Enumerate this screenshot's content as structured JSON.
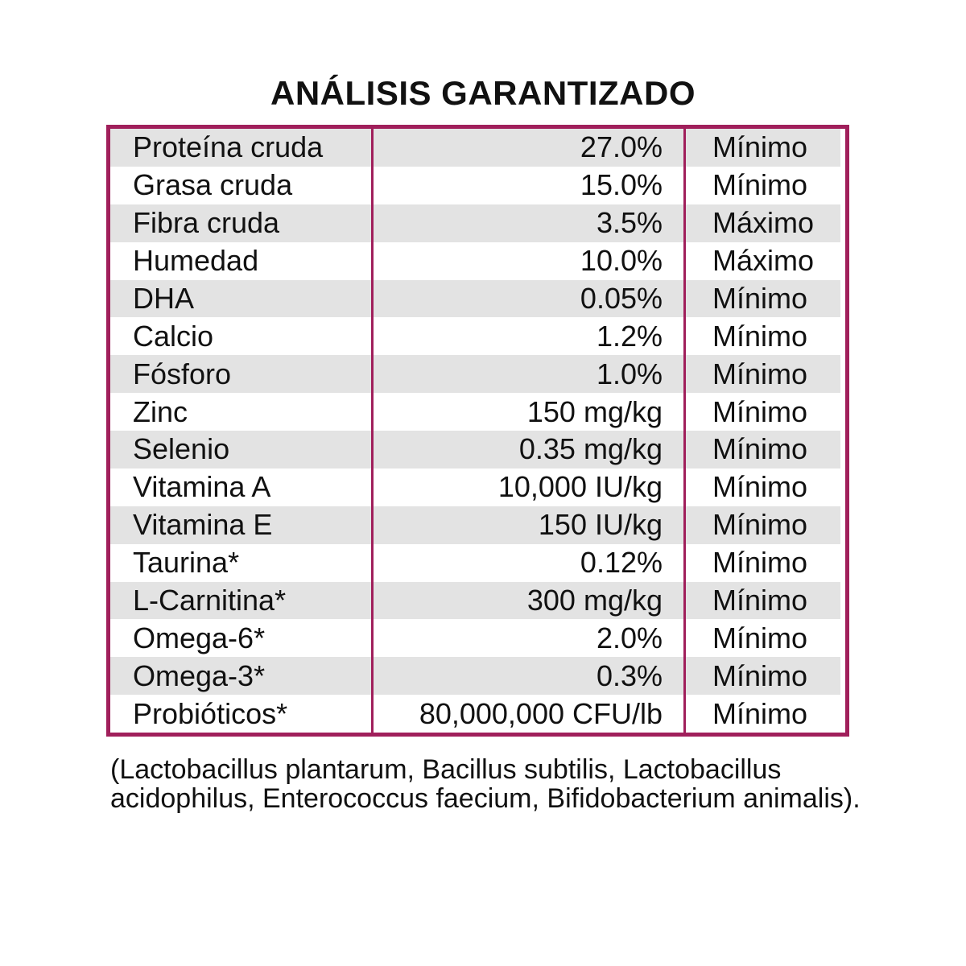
{
  "title": "ANÁLISIS GARANTIZADO",
  "colors": {
    "border": "#a01f5b",
    "stripe": "#e3e3e3"
  },
  "rows": [
    {
      "nutrient": "Proteína cruda",
      "value": "27.0%",
      "type": "Mínimo"
    },
    {
      "nutrient": "Grasa cruda",
      "value": "15.0%",
      "type": "Mínimo"
    },
    {
      "nutrient": "Fibra cruda",
      "value": "3.5%",
      "type": "Máximo"
    },
    {
      "nutrient": "Humedad",
      "value": "10.0%",
      "type": "Máximo"
    },
    {
      "nutrient": "DHA",
      "value": "0.05%",
      "type": "Mínimo"
    },
    {
      "nutrient": "Calcio",
      "value": "1.2%",
      "type": "Mínimo"
    },
    {
      "nutrient": "Fósforo",
      "value": "1.0%",
      "type": "Mínimo"
    },
    {
      "nutrient": "Zinc",
      "value": "150 mg/kg",
      "type": "Mínimo"
    },
    {
      "nutrient": "Selenio",
      "value": "0.35 mg/kg",
      "type": "Mínimo"
    },
    {
      "nutrient": "Vitamina A",
      "value": "10,000 IU/kg",
      "type": "Mínimo"
    },
    {
      "nutrient": "Vitamina E",
      "value": "150 IU/kg",
      "type": "Mínimo"
    },
    {
      "nutrient": "Taurina*",
      "value": "0.12%",
      "type": "Mínimo"
    },
    {
      "nutrient": "L-Carnitina*",
      "value": "300 mg/kg",
      "type": "Mínimo"
    },
    {
      "nutrient": "Omega-6*",
      "value": "2.0%",
      "type": "Mínimo"
    },
    {
      "nutrient": "Omega-3*",
      "value": "0.3%",
      "type": "Mínimo"
    },
    {
      "nutrient": "Probióticos*",
      "value": "80,000,000 CFU/lb",
      "type": "Mínimo"
    }
  ],
  "footnote": "(Lactobacillus plantarum, Bacillus subtilis, Lactobacillus acidophilus, Enterococcus faecium, Bifidobacterium animalis)."
}
